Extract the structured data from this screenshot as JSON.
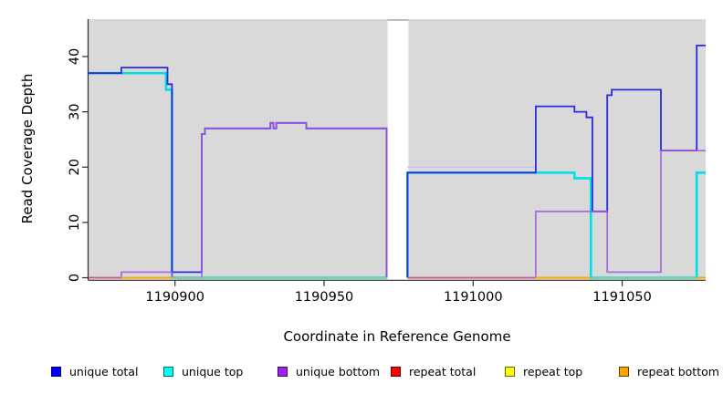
{
  "chart_data": {
    "type": "line",
    "subtype": "step",
    "title": "",
    "xlabel": "Coordinate in Reference Genome",
    "ylabel": "Read Coverage Depth",
    "xlim": [
      1190871,
      1191078
    ],
    "ylim": [
      0,
      46.8
    ],
    "x_ticks": [
      1190900,
      1190950,
      1191000,
      1191050
    ],
    "y_ticks": [
      0,
      10,
      20,
      30,
      40
    ],
    "grid": "off",
    "panel_background": "#D9D9D9",
    "no_data_gap_x": [
      1190971.3,
      1190978.3
    ],
    "legend_position": "bottom",
    "legend": [
      {
        "label": "unique total",
        "color": "#0000FF"
      },
      {
        "label": "unique top",
        "color": "#00FFFF"
      },
      {
        "label": "unique bottom",
        "color": "#A020F0"
      },
      {
        "label": "repeat total",
        "color": "#FF0000"
      },
      {
        "label": "repeat top",
        "color": "#FFFF00"
      },
      {
        "label": "repeat bottom",
        "color": "#FFA500"
      }
    ],
    "series": [
      {
        "name": "faint level 20",
        "color": "#C9C3E8",
        "width": 1.4,
        "opacity": 1,
        "paths": [
          [
            [
              1190978,
              20
            ],
            [
              1191021,
              20
            ]
          ]
        ]
      },
      {
        "name": "unique top",
        "color": "#00DEE8",
        "width": 2.6,
        "opacity": 1,
        "paths": [
          [
            [
              1190871,
              37
            ],
            [
              1190897,
              34
            ],
            [
              1190899,
              0
            ],
            [
              1190971,
              0
            ]
          ],
          [
            [
              1190978,
              0
            ],
            [
              1190978,
              19
            ],
            [
              1191034,
              18
            ],
            [
              1191039.5,
              0
            ],
            [
              1191075,
              19
            ],
            [
              1191078,
              19
            ]
          ]
        ]
      },
      {
        "name": "unique total",
        "color": "#2B2BDC",
        "width": 1.8,
        "opacity": 1,
        "paths": [
          [
            [
              1190871,
              37
            ],
            [
              1190882,
              38
            ],
            [
              1190897.5,
              35
            ],
            [
              1190899,
              1
            ],
            [
              1190909,
              26
            ],
            [
              1190910,
              27
            ],
            [
              1190932,
              28
            ],
            [
              1190933,
              27
            ],
            [
              1190934,
              28
            ],
            [
              1190944,
              27
            ],
            [
              1190971,
              0
            ]
          ],
          [
            [
              1190978,
              0
            ],
            [
              1190978,
              19
            ],
            [
              1191021,
              31
            ],
            [
              1191034,
              30
            ],
            [
              1191038,
              29
            ],
            [
              1191040,
              12
            ],
            [
              1191045,
              33
            ],
            [
              1191046.5,
              34
            ],
            [
              1191063,
              23
            ],
            [
              1191075,
              42
            ],
            [
              1191078,
              42
            ]
          ]
        ]
      },
      {
        "name": "unique bottom",
        "color": "#A159DE",
        "width": 1.8,
        "opacity": 0.85,
        "paths": [
          [
            [
              1190871,
              0
            ],
            [
              1190882,
              1
            ],
            [
              1190899,
              0
            ],
            [
              1190909,
              26
            ],
            [
              1190910,
              27
            ],
            [
              1190932,
              28
            ],
            [
              1190933,
              27
            ],
            [
              1190934,
              28
            ],
            [
              1190944,
              27
            ],
            [
              1190971,
              0
            ]
          ],
          [
            [
              1190978,
              0
            ],
            [
              1191021,
              12
            ],
            [
              1191045,
              1
            ],
            [
              1191063,
              23
            ],
            [
              1191078,
              23
            ]
          ]
        ]
      },
      {
        "name": "repeat total",
        "color": "#D65780",
        "width": 1.6,
        "opacity": 1,
        "paths": [
          [
            [
              1190871,
              0
            ],
            [
              1190882,
              0
            ]
          ],
          [
            [
              1190978,
              0
            ],
            [
              1191021,
              0
            ]
          ]
        ]
      },
      {
        "name": "repeat top",
        "color": "#FFFF00",
        "width": 1.6,
        "opacity": 1,
        "paths": []
      },
      {
        "name": "repeat bottom",
        "color": "#FFA500",
        "width": 2,
        "opacity": 1,
        "paths": [
          [
            [
              1190882,
              0
            ],
            [
              1190899,
              0
            ]
          ],
          [
            [
              1191021,
              0
            ],
            [
              1191039.5,
              0
            ]
          ],
          [
            [
              1191075,
              0
            ],
            [
              1191078,
              0
            ]
          ]
        ]
      },
      {
        "name": "baseline overlap blend",
        "color": "#8CCE8C",
        "width": 1.6,
        "opacity": 1,
        "paths": [
          [
            [
              1190899,
              0
            ],
            [
              1190971,
              0
            ]
          ],
          [
            [
              1191040,
              0
            ],
            [
              1191075,
              0
            ]
          ]
        ]
      }
    ]
  }
}
